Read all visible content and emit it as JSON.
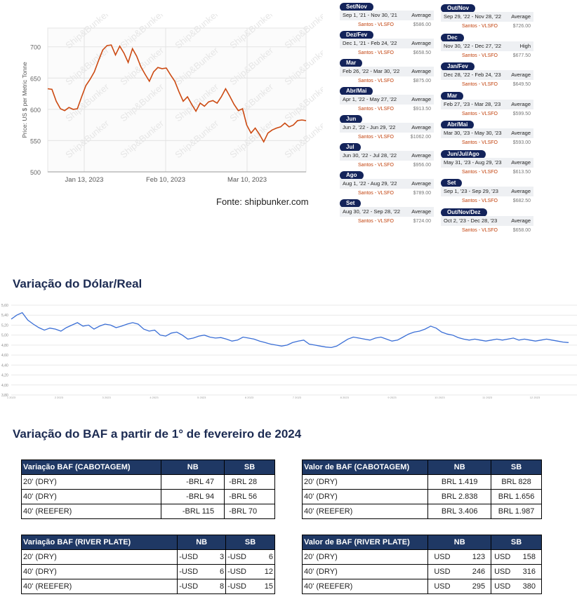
{
  "bunker_chart": {
    "chart_data": {
      "type": "line",
      "ylabel": "Price: US $ per Metric Tonne",
      "ylim": [
        500,
        730
      ],
      "yticks": [
        500,
        550,
        600,
        650,
        700
      ],
      "xticks": [
        "Jan 13, 2023",
        "Feb 10, 2023",
        "Mar 10, 2023"
      ],
      "watermark": "Ship&Bunker",
      "series": [
        {
          "color": "#cc4a12",
          "values": [
            633,
            632,
            613,
            601,
            598,
            603,
            600,
            601,
            620,
            638,
            648,
            660,
            678,
            695,
            702,
            703,
            687,
            701,
            690,
            675,
            697,
            685,
            668,
            656,
            645,
            660,
            667,
            665,
            666,
            655,
            645,
            628,
            613,
            620,
            608,
            597,
            610,
            605,
            612,
            614,
            610,
            620,
            633,
            621,
            608,
            598,
            601,
            575,
            562,
            570,
            560,
            548,
            562,
            567,
            570,
            572,
            578,
            572,
            575,
            582,
            583,
            582
          ]
        }
      ]
    },
    "fonte": "Fonte: shipbunker.com"
  },
  "periods_left": [
    {
      "label": "Set/Nov",
      "range": "Sep 1, '21 - Nov 30, '21",
      "stat": "Average",
      "port": "Santos - VLSFO",
      "price": "$586.00"
    },
    {
      "label": "Dez/Fev",
      "range": "Dec 1, '21 - Feb 24, '22",
      "stat": "Average",
      "port": "Santos - VLSFO",
      "price": "$658.50"
    },
    {
      "label": "Mar",
      "range": "Feb 26, '22 - Mar 30, '22",
      "stat": "Average",
      "port": "Santos - VLSFO",
      "price": "$875.00"
    },
    {
      "label": "Abr/Mai",
      "range": "Apr 1, '22 - May 27, '22",
      "stat": "Average",
      "port": "Santos - VLSFO",
      "price": "$913.50"
    },
    {
      "label": "Jun",
      "range": "Jun 2, '22 - Jun 29, '22",
      "stat": "Average",
      "port": "Santos - VLSFO",
      "price": "$1062.00"
    },
    {
      "label": "Jul",
      "range": "Jun 30, '22 - Jul 28, '22",
      "stat": "Average",
      "port": "Santos - VLSFO",
      "price": "$956.00"
    },
    {
      "label": "Ago",
      "range": "Aug 1, '22 - Aug 29, '22",
      "stat": "Average",
      "port": "Santos - VLSFO",
      "price": "$789.00"
    },
    {
      "label": "Set",
      "range": "Aug 30, '22 - Sep 28, '22",
      "stat": "Average",
      "port": "Santos - VLSFO",
      "price": "$724.00"
    }
  ],
  "periods_right": [
    {
      "label": "Out/Nov",
      "range": "Sep 29, '22 - Nov 28, '22",
      "stat": "Average",
      "port": "Santos - VLSFO",
      "price": "$726.00"
    },
    {
      "label": "Dec",
      "range": "Nov 30, '22 - Dec 27, '22",
      "stat": "High",
      "port": "Santos - VLSFO",
      "price": "$677.50"
    },
    {
      "label": "Jan/Fev",
      "range": "Dec 28, '22 - Feb 24, '23",
      "stat": "Average",
      "port": "Santos - VLSFO",
      "price": "$649.50"
    },
    {
      "label": "Mar",
      "range": "Feb 27, '23 - Mar 28, '23",
      "stat": "Average",
      "port": "Santos - VLSFO",
      "price": "$599.50"
    },
    {
      "label": "Abr/Mai",
      "range": "Mar 30, '23 - May 30, '23",
      "stat": "Average",
      "port": "Santos - VLSFO",
      "price": "$593.00"
    },
    {
      "label": "Jun/Jul/Ago",
      "range": "May 31, '23 - Aug 29, '23",
      "stat": "Average",
      "port": "Santos - VLSFO",
      "price": "$613.50"
    },
    {
      "label": "Set",
      "range": "Sep 1, '23 - Sep 29, '23",
      "stat": "Average",
      "port": "Santos - VLSFO",
      "price": "$682.50"
    },
    {
      "label": "Out/Nov/Dez",
      "range": "Oct 2, '23 - Dec 28, '23",
      "stat": "Average",
      "port": "Santos - VLSFO",
      "price": "$658.00"
    }
  ],
  "dollar_section": {
    "title": "Variação do Dólar/Real",
    "chart_data": {
      "type": "line",
      "ylim": [
        3.8,
        5.6
      ],
      "yticks": [
        "3,80",
        "4,00",
        "4,20",
        "4,40",
        "4,60",
        "4,80",
        "5,00",
        "5,20",
        "5,40",
        "5,60"
      ],
      "xticks": [
        "1 2023",
        "2 2023",
        "3 2023",
        "4 2023",
        "5 2023",
        "6 2023",
        "7 2023",
        "8 2023",
        "9 2023",
        "10 2023",
        "11 2023",
        "12 2023"
      ],
      "series": [
        {
          "color": "#3b6fd6",
          "values": [
            5.32,
            5.4,
            5.45,
            5.3,
            5.22,
            5.15,
            5.1,
            5.14,
            5.12,
            5.08,
            5.15,
            5.2,
            5.25,
            5.18,
            5.2,
            5.12,
            5.18,
            5.22,
            5.2,
            5.15,
            5.18,
            5.22,
            5.25,
            5.22,
            5.12,
            5.08,
            5.1,
            5.0,
            4.98,
            5.04,
            5.06,
            5.0,
            4.92,
            4.94,
            4.98,
            5.0,
            4.96,
            4.94,
            4.95,
            4.92,
            4.88,
            4.9,
            4.96,
            4.94,
            4.92,
            4.88,
            4.85,
            4.82,
            4.8,
            4.78,
            4.8,
            4.85,
            4.88,
            4.9,
            4.82,
            4.8,
            4.78,
            4.76,
            4.75,
            4.78,
            4.85,
            4.92,
            4.96,
            4.94,
            4.92,
            4.9,
            4.94,
            4.96,
            4.92,
            4.88,
            4.9,
            4.96,
            5.02,
            5.06,
            5.08,
            5.12,
            5.18,
            5.14,
            5.06,
            5.02,
            5.0,
            4.95,
            4.92,
            4.9,
            4.92,
            4.9,
            4.88,
            4.9,
            4.92,
            4.9,
            4.92,
            4.94,
            4.9,
            4.92,
            4.9,
            4.88,
            4.9,
            4.92,
            4.9,
            4.88,
            4.86,
            4.85
          ]
        }
      ]
    }
  },
  "baf_section": {
    "title": "Variação do BAF a partir de 1° de fevereiro de 2024",
    "tables": [
      {
        "header": "Variação BAF (CABOTAGEM)",
        "nb": "NB",
        "sb": "SB",
        "rows": [
          {
            "type": "20' (DRY)",
            "nb": "-BRL 47",
            "sb": "-BRL 28"
          },
          {
            "type": "40' (DRY)",
            "nb": "-BRL 94",
            "sb": "-BRL 56"
          },
          {
            "type": "40' (REEFER)",
            "nb": "-BRL 115",
            "sb": "-BRL 70"
          }
        ]
      },
      {
        "header": "Valor de BAF (CABOTAGEM)",
        "nb": "NB",
        "sb": "SB",
        "rows": [
          {
            "type": "20' (DRY)",
            "nb": "BRL 1.419",
            "sb": "BRL 828"
          },
          {
            "type": "40' (DRY)",
            "nb": "BRL 2.838",
            "sb": "BRL 1.656"
          },
          {
            "type": "40' (REEFER)",
            "nb": "BRL 3.406",
            "sb": "BRL 1.987"
          }
        ]
      },
      {
        "header": "Variação BAF (RIVER PLATE)",
        "nb": "NB",
        "sb": "SB",
        "rows": [
          {
            "type": "20' (DRY)",
            "nb_cur": "-USD",
            "nb_val": "3",
            "sb_cur": "-USD",
            "sb_val": "6"
          },
          {
            "type": "40' (DRY)",
            "nb_cur": "-USD",
            "nb_val": "6",
            "sb_cur": "-USD",
            "sb_val": "12"
          },
          {
            "type": "40' (REEFER)",
            "nb_cur": "-USD",
            "nb_val": "8",
            "sb_cur": "-USD",
            "sb_val": "15"
          }
        ]
      },
      {
        "header": "Valor de BAF (RIVER PLATE)",
        "nb": "NB",
        "sb": "SB",
        "rows": [
          {
            "type": "20' (DRY)",
            "nb_cur": "USD",
            "nb_val": "123",
            "sb_cur": "USD",
            "sb_val": "158"
          },
          {
            "type": "40' (DRY)",
            "nb_cur": "USD",
            "nb_val": "246",
            "sb_cur": "USD",
            "sb_val": "316"
          },
          {
            "type": "40' (REEFER)",
            "nb_cur": "USD",
            "nb_val": "295",
            "sb_cur": "USD",
            "sb_val": "380"
          }
        ]
      }
    ]
  }
}
